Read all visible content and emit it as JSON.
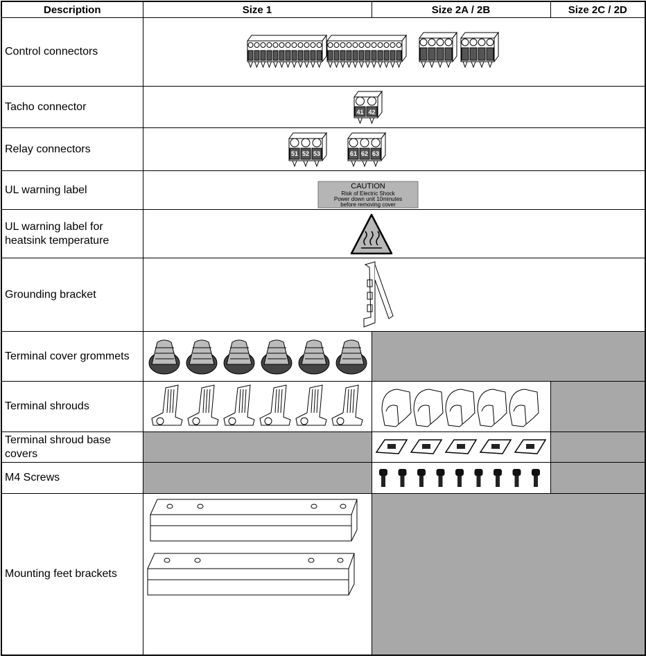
{
  "table": {
    "header": [
      "Description",
      "Size 1",
      "Size 2A / 2B",
      "Size 2C / 2D"
    ],
    "rows": [
      {
        "description": "Control connectors"
      },
      {
        "description": "Tacho connector",
        "terminals": [
          "41",
          "42"
        ]
      },
      {
        "description": "Relay connectors",
        "terminals": [
          [
            "51",
            "52",
            "53"
          ],
          [
            "61",
            "62",
            "63"
          ]
        ]
      },
      {
        "description": "UL warning label",
        "label_text": [
          "CAUTION",
          "Risk of Electric Shock",
          "Power down unit 10minutes",
          "before removing cover"
        ]
      },
      {
        "description": "UL warning label for heatsink temperature"
      },
      {
        "description": "Grounding bracket"
      },
      {
        "description": "Terminal cover grommets"
      },
      {
        "description": "Terminal shrouds"
      },
      {
        "description": "Terminal shroud base covers"
      },
      {
        "description": "M4 Screws"
      },
      {
        "description": "Mounting feet brackets"
      }
    ]
  }
}
